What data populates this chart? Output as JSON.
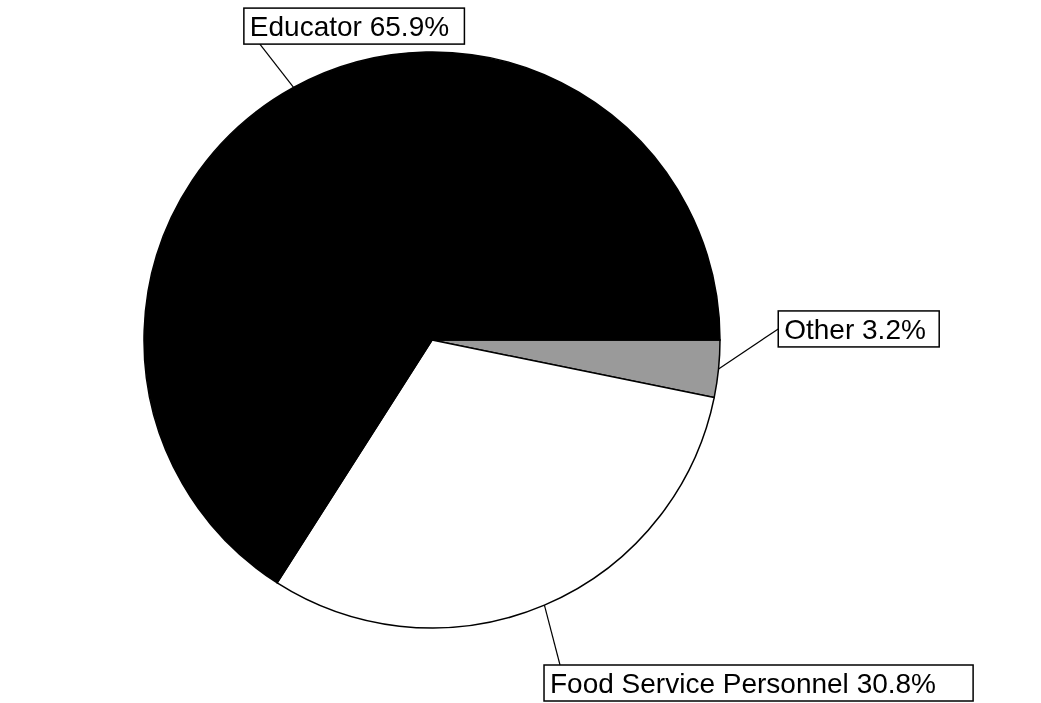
{
  "chart_data": {
    "type": "pie",
    "categories": [
      "Other",
      "Food Service Personnel",
      "Educator"
    ],
    "values": [
      3.2,
      30.8,
      65.9
    ],
    "colors": [
      "#9a9a9a",
      "#ffffff",
      "#000000"
    ],
    "value_labels": [
      "3.2%",
      "30.8%",
      "65.9%"
    ]
  }
}
